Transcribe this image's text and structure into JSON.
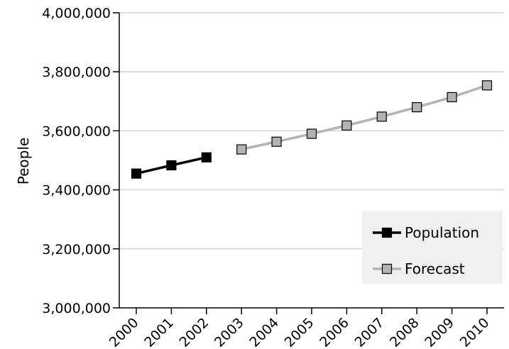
{
  "chart_data": {
    "type": "line",
    "title": "",
    "xlabel": "",
    "ylabel": "People",
    "categories": [
      "2000",
      "2001",
      "2002",
      "2003",
      "2004",
      "2005",
      "2006",
      "2007",
      "2008",
      "2009",
      "2010"
    ],
    "ylim": [
      3000000,
      4000000
    ],
    "yticks": [
      3000000,
      3200000,
      3400000,
      3600000,
      3800000,
      4000000
    ],
    "ytick_labels": [
      "3,000,000",
      "3,200,000",
      "3,400,000",
      "3,600,000",
      "3,800,000",
      "4,000,000"
    ],
    "grid": true,
    "legend_position": "bottom-right",
    "series": [
      {
        "name": "Population",
        "color": "#000000",
        "marker_fill": "#000000",
        "x": [
          "2000",
          "2001",
          "2002"
        ],
        "values": [
          3455000,
          3483000,
          3510000
        ]
      },
      {
        "name": "Forecast",
        "color": "#b3b3b3",
        "marker_fill": "#b3b3b3",
        "x": [
          "2003",
          "2004",
          "2005",
          "2006",
          "2007",
          "2008",
          "2009",
          "2010"
        ],
        "values": [
          3537000,
          3563000,
          3590000,
          3618000,
          3648000,
          3680000,
          3714000,
          3754000
        ]
      }
    ]
  }
}
